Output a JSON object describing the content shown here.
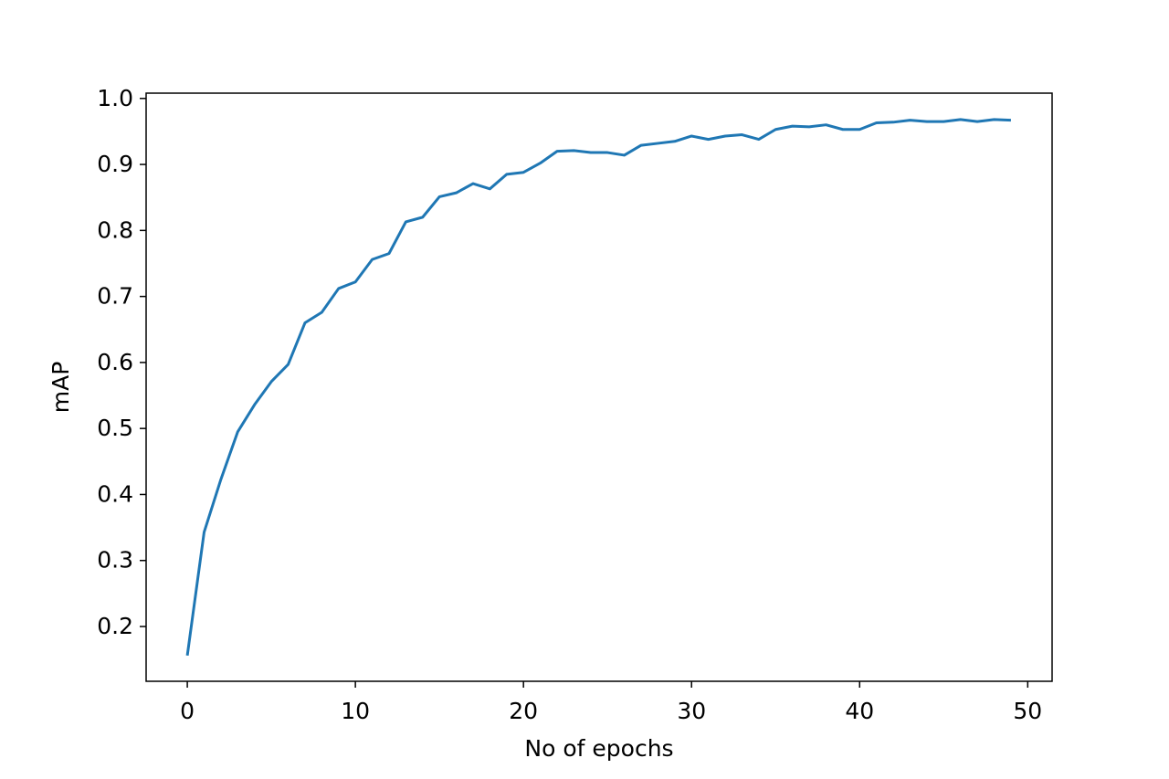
{
  "chart_data": {
    "type": "line",
    "x_label": "No of epochs",
    "y_label": "mAP",
    "x": [
      0,
      1,
      2,
      3,
      4,
      5,
      6,
      7,
      8,
      9,
      10,
      11,
      12,
      13,
      14,
      15,
      16,
      17,
      18,
      19,
      20,
      21,
      22,
      23,
      24,
      25,
      26,
      27,
      28,
      29,
      30,
      31,
      32,
      33,
      34,
      35,
      36,
      37,
      38,
      39,
      40,
      41,
      42,
      43,
      44,
      45,
      46,
      47,
      48,
      49
    ],
    "series": [
      {
        "name": "mAP",
        "color": "#1f77b4",
        "values": [
          0.156,
          0.343,
          0.423,
          0.495,
          0.536,
          0.571,
          0.597,
          0.66,
          0.676,
          0.712,
          0.722,
          0.756,
          0.765,
          0.813,
          0.82,
          0.851,
          0.857,
          0.871,
          0.863,
          0.885,
          0.888,
          0.902,
          0.92,
          0.921,
          0.918,
          0.918,
          0.914,
          0.929,
          0.932,
          0.935,
          0.943,
          0.938,
          0.943,
          0.945,
          0.938,
          0.953,
          0.958,
          0.957,
          0.96,
          0.953,
          0.953,
          0.963,
          0.964,
          0.967,
          0.965,
          0.965,
          0.968,
          0.965,
          0.968,
          0.967
        ]
      }
    ],
    "xlim": [
      -2.45,
      51.45
    ],
    "ylim": [
      0.117,
      1.008
    ],
    "xticks": [
      0,
      10,
      20,
      30,
      40,
      50
    ],
    "yticks": [
      0.2,
      0.3,
      0.4,
      0.5,
      0.6,
      0.7,
      0.8,
      0.9,
      {
        "value": 1,
        "label": "1.0"
      }
    ],
    "grid": false
  }
}
